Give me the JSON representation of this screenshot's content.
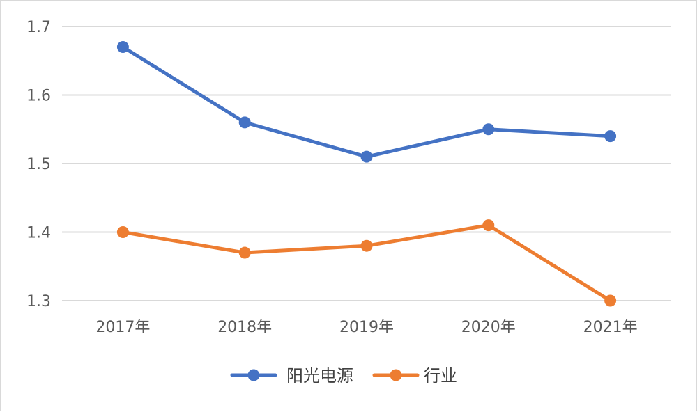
{
  "chart_data": {
    "type": "line",
    "categories": [
      "2017年",
      "2018年",
      "2019年",
      "2020年",
      "2021年"
    ],
    "series": [
      {
        "name": "阳光电源",
        "values": [
          1.67,
          1.56,
          1.51,
          1.55,
          1.54
        ],
        "color": "#4472C4"
      },
      {
        "name": "行业",
        "values": [
          1.4,
          1.37,
          1.38,
          1.41,
          1.3
        ],
        "color": "#ED7D31"
      }
    ],
    "ylim": [
      1.3,
      1.7
    ],
    "yticks": [
      "1.3",
      "1.4",
      "1.5",
      "1.6",
      "1.7"
    ],
    "grid": true,
    "legend_position": "bottom",
    "title": "",
    "xlabel": "",
    "ylabel": ""
  }
}
